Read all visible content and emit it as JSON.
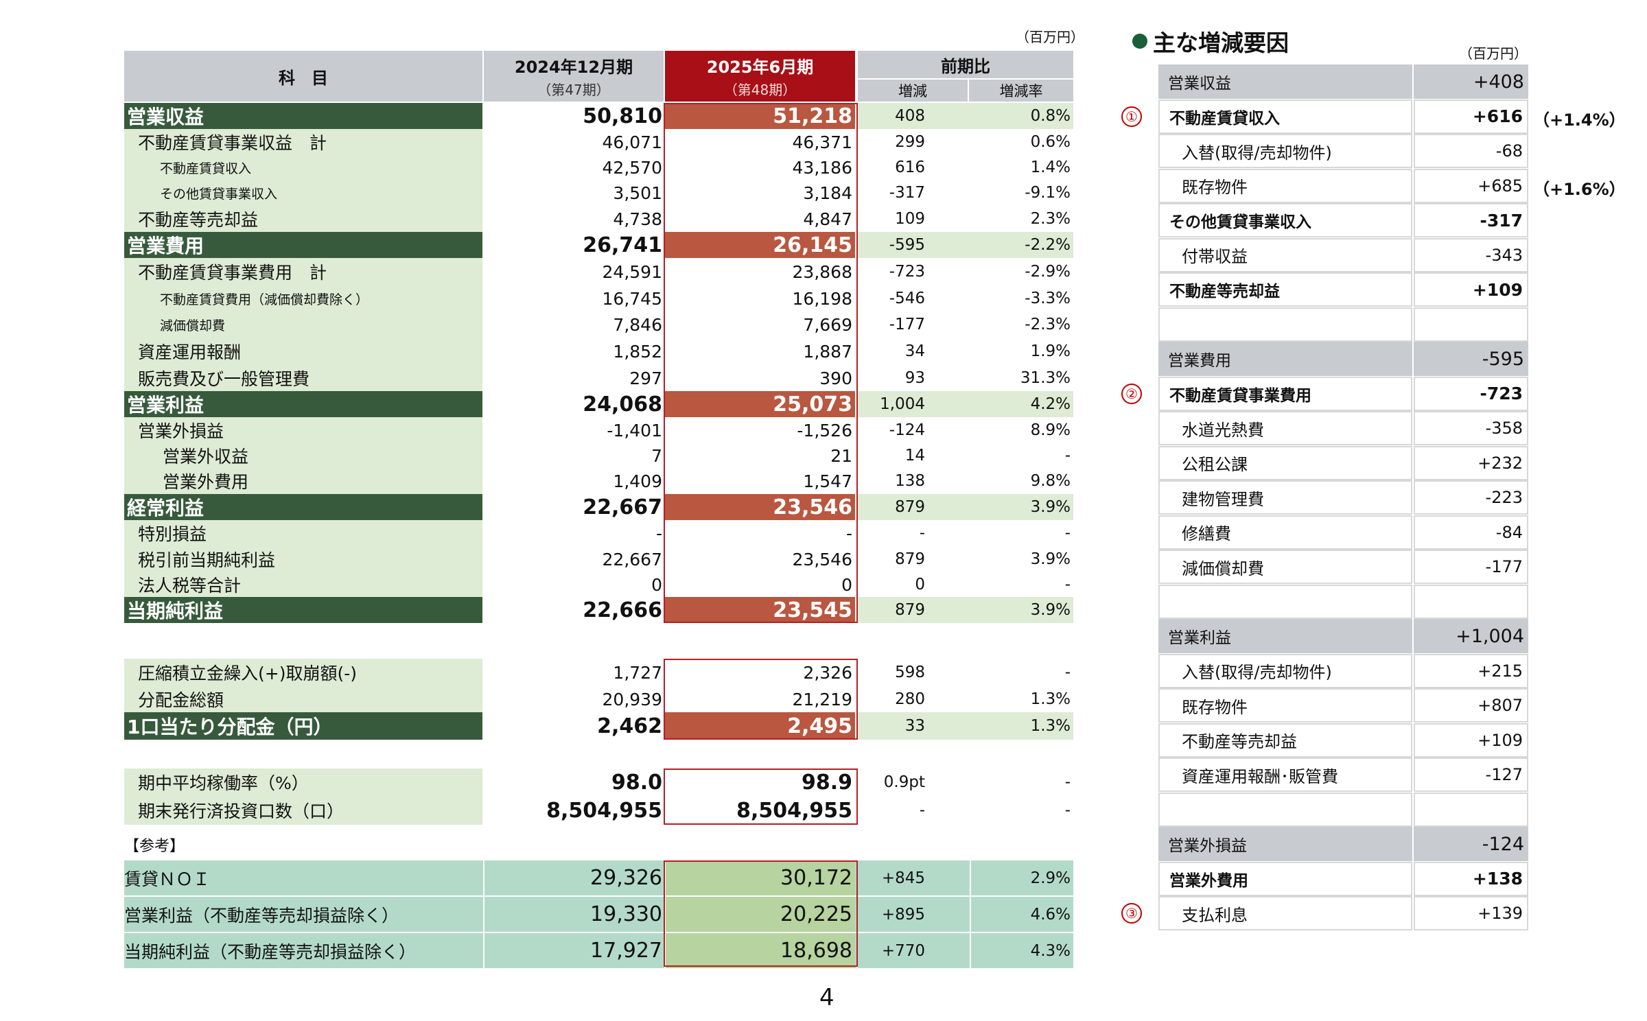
{
  "unit_left": "（百万円）",
  "unit_right": "（百万円）",
  "page_number": "4",
  "header": {
    "subject": "科　目",
    "col_a_title": "2024年12月期",
    "col_a_sub": "（第47期）",
    "col_b_title": "2025年6月期",
    "col_b_sub": "（第48期）",
    "diff_title": "前期比",
    "diff_amount": "増減",
    "diff_rate": "増減率"
  },
  "rows": [
    {
      "label": "営業収益",
      "a": "50,810",
      "b": "51,218",
      "d": "408",
      "r": "0.8%"
    },
    {
      "label": "不動産賃貸事業収益　計",
      "a": "46,071",
      "b": "46,371",
      "d": "299",
      "r": "0.6%"
    },
    {
      "label": "不動産賃貸収入",
      "a": "42,570",
      "b": "43,186",
      "d": "616",
      "r": "1.4%"
    },
    {
      "label": "その他賃貸事業収入",
      "a": "3,501",
      "b": "3,184",
      "d": "-317",
      "r": "-9.1%"
    },
    {
      "label": "不動産等売却益",
      "a": "4,738",
      "b": "4,847",
      "d": "109",
      "r": "2.3%"
    },
    {
      "label": "営業費用",
      "a": "26,741",
      "b": "26,145",
      "d": "-595",
      "r": "-2.2%"
    },
    {
      "label": "不動産賃貸事業費用　計",
      "a": "24,591",
      "b": "23,868",
      "d": "-723",
      "r": "-2.9%"
    },
    {
      "label": "不動産賃貸費用（減価償却費除く）",
      "a": "16,745",
      "b": "16,198",
      "d": "-546",
      "r": "-3.3%"
    },
    {
      "label": "減価償却費",
      "a": "7,846",
      "b": "7,669",
      "d": "-177",
      "r": "-2.3%"
    },
    {
      "label": "資産運用報酬",
      "a": "1,852",
      "b": "1,887",
      "d": "34",
      "r": "1.9%"
    },
    {
      "label": "販売費及び一般管理費",
      "a": "297",
      "b": "390",
      "d": "93",
      "r": "31.3%"
    },
    {
      "label": "営業利益",
      "a": "24,068",
      "b": "25,073",
      "d": "1,004",
      "r": "4.2%"
    },
    {
      "label": "営業外損益",
      "a": "-1,401",
      "b": "-1,526",
      "d": "-124",
      "r": "8.9%"
    },
    {
      "label": "営業外収益",
      "a": "7",
      "b": "21",
      "d": "14",
      "r": "-"
    },
    {
      "label": "営業外費用",
      "a": "1,409",
      "b": "1,547",
      "d": "138",
      "r": "9.8%"
    },
    {
      "label": "経常利益",
      "a": "22,667",
      "b": "23,546",
      "d": "879",
      "r": "3.9%"
    },
    {
      "label": "特別損益",
      "a": "-",
      "b": "-",
      "d": "-",
      "r": "-"
    },
    {
      "label": "税引前当期純利益",
      "a": "22,667",
      "b": "23,546",
      "d": "879",
      "r": "3.9%"
    },
    {
      "label": "法人税等合計",
      "a": "0",
      "b": "0",
      "d": "0",
      "r": "-"
    },
    {
      "label": "当期純利益",
      "a": "22,666",
      "b": "23,545",
      "d": "879",
      "r": "3.9%"
    },
    {
      "label": "圧縮積立金繰入(+)取崩額(-)",
      "a": "1,727",
      "b": "2,326",
      "d": "598",
      "r": "-"
    },
    {
      "label": "分配金総額",
      "a": "20,939",
      "b": "21,219",
      "d": "280",
      "r": "1.3%"
    },
    {
      "label": "1口当たり分配金（円）",
      "a": "2,462",
      "b": "2,495",
      "d": "33",
      "r": "1.3%"
    },
    {
      "label": "期中平均稼働率（%）",
      "a": "98.0",
      "b": "98.9",
      "d": "0.9pt",
      "r": "-"
    },
    {
      "label": "期末発行済投資口数（口）",
      "a": "8,504,955",
      "b": "8,504,955",
      "d": "-",
      "r": "-"
    }
  ],
  "reference_label": "【参考】",
  "ref_rows": [
    {
      "label": "賃貸ＮＯＩ",
      "a": "29,326",
      "b": "30,172",
      "d": "+845",
      "r": "2.9%"
    },
    {
      "label": "営業利益（不動産等売却損益除く）",
      "a": "19,330",
      "b": "20,225",
      "d": "+895",
      "r": "4.6%"
    },
    {
      "label": "当期純利益（不動産等売却損益除く）",
      "a": "17,927",
      "b": "18,698",
      "d": "+770",
      "r": "4.3%"
    }
  ],
  "right_panel": {
    "title": "主な増減要因",
    "bullet_color": "#1b5e3a",
    "rows": [
      {
        "label": "営業収益",
        "value": "+408"
      },
      {
        "label": "不動産賃貸収入",
        "value": "+616",
        "marker": "①",
        "pct": "（+1.4%）"
      },
      {
        "label": "入替(取得/売却物件)",
        "value": "-68"
      },
      {
        "label": "既存物件",
        "value": "+685",
        "pct": "（+1.6%）"
      },
      {
        "label": "その他賃貸事業収入",
        "value": "-317"
      },
      {
        "label": "付帯収益",
        "value": "-343"
      },
      {
        "label": "不動産等売却益",
        "value": "+109"
      },
      {
        "label": "",
        "value": ""
      },
      {
        "label": "営業費用",
        "value": "-595"
      },
      {
        "label": "不動産賃貸事業費用",
        "value": "-723",
        "marker": "②"
      },
      {
        "label": "水道光熱費",
        "value": "-358"
      },
      {
        "label": "公租公課",
        "value": "+232"
      },
      {
        "label": "建物管理費",
        "value": "-223"
      },
      {
        "label": "修繕費",
        "value": "-84"
      },
      {
        "label": "減価償却費",
        "value": "-177"
      },
      {
        "label": "",
        "value": ""
      },
      {
        "label": "営業利益",
        "value": "+1,004"
      },
      {
        "label": "入替(取得/売却物件)",
        "value": "+215"
      },
      {
        "label": "既存物件",
        "value": "+807"
      },
      {
        "label": "不動産等売却益",
        "value": "+109"
      },
      {
        "label": "資産運用報酬･販管費",
        "value": "-127"
      },
      {
        "label": "",
        "value": ""
      },
      {
        "label": "営業外損益",
        "value": "-124"
      },
      {
        "label": "営業外費用",
        "value": "+138"
      },
      {
        "label": "支払利息",
        "value": "+139",
        "marker": "③"
      }
    ]
  }
}
